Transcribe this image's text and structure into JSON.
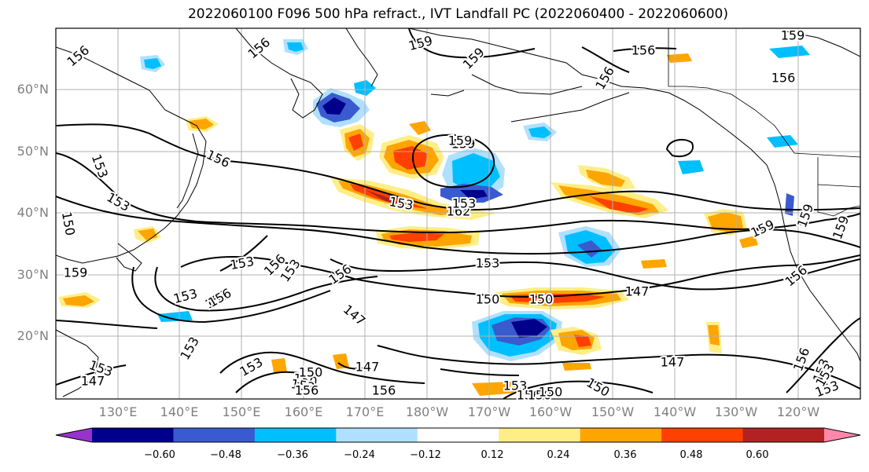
{
  "title": "2022060100 F096 500 hPa refract., IVT Landfall PC (2022060400 - 2022060600)",
  "lat_labels": [
    "60°N",
    "50°N",
    "40°N",
    "30°N",
    "20°N"
  ],
  "lon_labels": [
    "130°E",
    "140°E",
    "150°E",
    "160°E",
    "170°E",
    "180°W",
    "170°W",
    "160°W",
    "150°W",
    "140°W",
    "130°W",
    "120°W"
  ],
  "colorbar": {
    "colors": [
      "#9932cc",
      "#00008b",
      "#3a5bcf",
      "#00bfff",
      "#b0e0ff",
      "#ffffff",
      "#ffee88",
      "#ffa500",
      "#ff4000",
      "#b22222",
      "#ff88aa"
    ],
    "tick_labels": [
      "−0.60",
      "−0.48",
      "−0.36",
      "−0.24",
      "−0.12",
      "0.12",
      "0.24",
      "0.36",
      "0.48",
      "0.60"
    ]
  },
  "contour_labels": [
    "156",
    "156",
    "159",
    "159",
    "156",
    "159",
    "156",
    "153",
    "156",
    "159",
    "153",
    "153",
    "162",
    "150",
    "159",
    "153",
    "153",
    "156",
    "150",
    "147",
    "153",
    "153",
    "150",
    "153",
    "147",
    "156",
    "159",
    "159",
    "147",
    "150",
    "153",
    "153",
    "147",
    "150",
    "147",
    "150",
    "153",
    "156",
    "153",
    "156",
    "156",
    "150",
    "150",
    "153",
    "153",
    "156",
    "156",
    "159",
    "156",
    "153",
    "150",
    "156",
    "153",
    "159"
  ]
}
